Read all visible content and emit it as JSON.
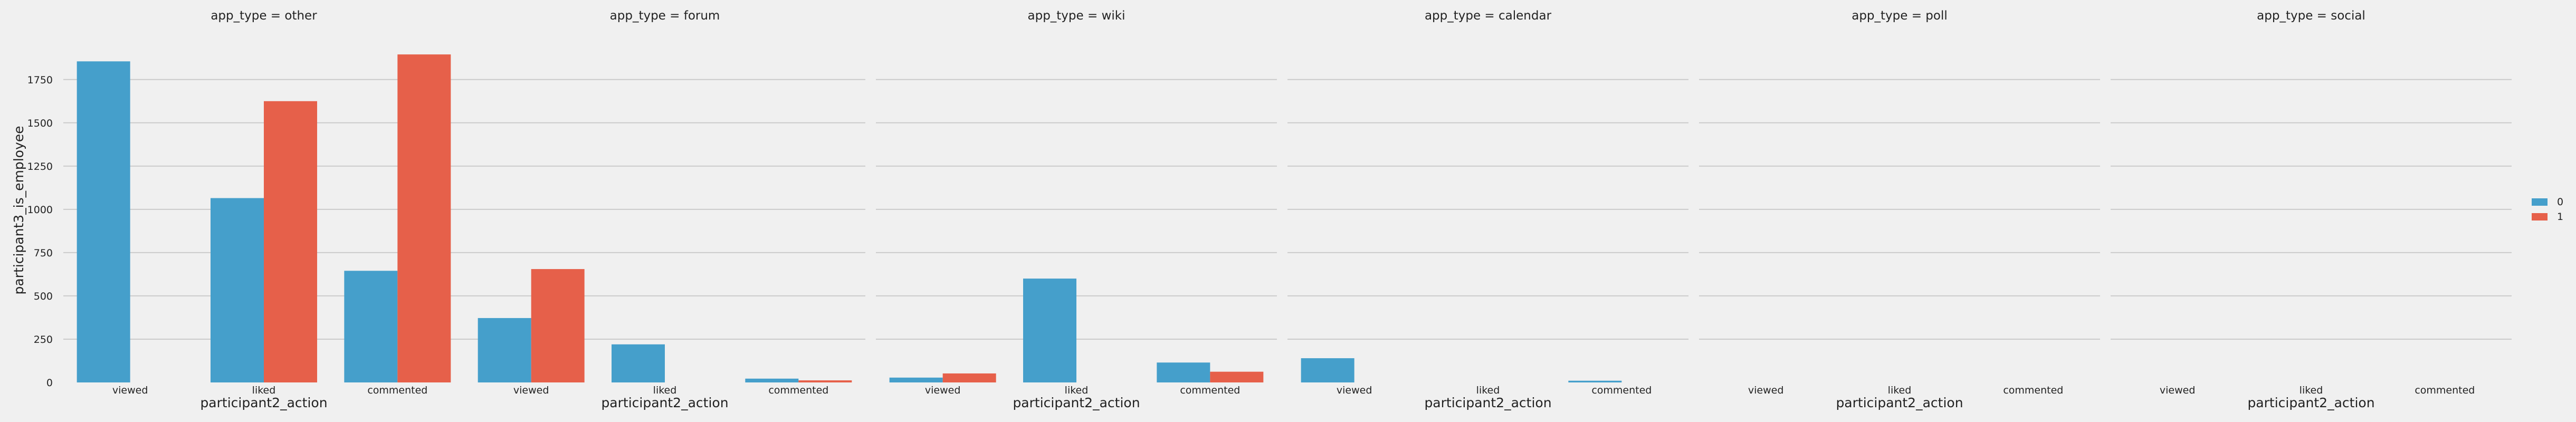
{
  "chart_data": {
    "type": "bar",
    "facet_variable": "app_type",
    "facets": [
      {
        "title": "app_type = other",
        "series": [
          {
            "name": "0",
            "values": [
              1855,
              1065,
              645
            ]
          },
          {
            "name": "1",
            "values": [
              null,
              1625,
              1895
            ]
          }
        ]
      },
      {
        "title": "app_type = forum",
        "series": [
          {
            "name": "0",
            "values": [
              372,
              220,
              22
            ]
          },
          {
            "name": "1",
            "values": [
              655,
              null,
              12
            ]
          }
        ]
      },
      {
        "title": "app_type = wiki",
        "series": [
          {
            "name": "0",
            "values": [
              28,
              600,
              115
            ]
          },
          {
            "name": "1",
            "values": [
              52,
              null,
              62
            ]
          }
        ]
      },
      {
        "title": "app_type = calendar",
        "series": [
          {
            "name": "0",
            "values": [
              140,
              null,
              10
            ]
          },
          {
            "name": "1",
            "values": [
              null,
              null,
              null
            ]
          }
        ]
      },
      {
        "title": "app_type = poll",
        "series": [
          {
            "name": "0",
            "values": [
              null,
              null,
              null
            ]
          },
          {
            "name": "1",
            "values": [
              null,
              null,
              null
            ]
          }
        ]
      },
      {
        "title": "app_type = social",
        "series": [
          {
            "name": "0",
            "values": [
              null,
              null,
              null
            ]
          },
          {
            "name": "1",
            "values": [
              null,
              null,
              null
            ]
          }
        ]
      }
    ],
    "categories": [
      "viewed",
      "liked",
      "commented"
    ],
    "xlabel": "participant2_action",
    "ylabel": "participant3_is_employee",
    "ylim": [
      0,
      1990
    ],
    "yticks": [
      0,
      250,
      500,
      750,
      1000,
      1250,
      1500,
      1750
    ],
    "grid": true,
    "legend": {
      "entries": [
        "0",
        "1"
      ],
      "position": "right"
    },
    "colors": {
      "0": "#459fcb",
      "1": "#e6604a",
      "grid": "#cbcbcb",
      "background": "#f0f0f0"
    }
  }
}
